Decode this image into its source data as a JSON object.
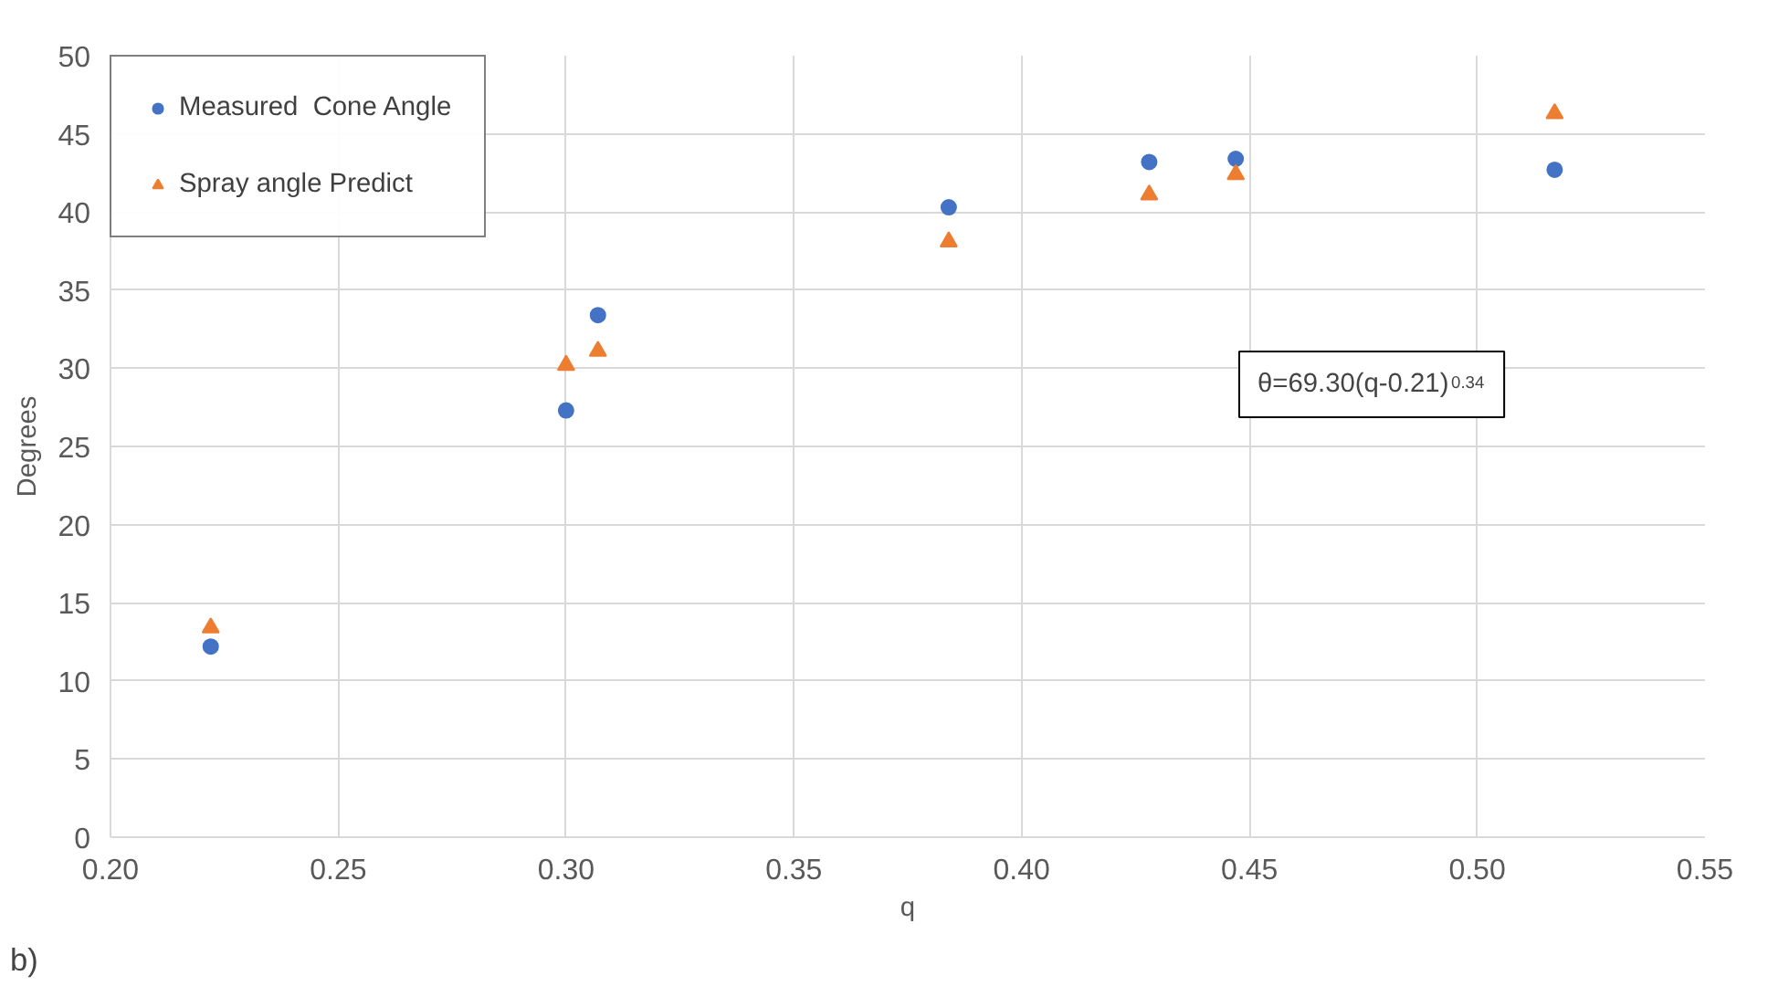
{
  "chart_data": {
    "type": "scatter",
    "xlabel": "q",
    "ylabel": "Degrees",
    "xlim": [
      0.2,
      0.55
    ],
    "xticks": [
      {
        "value": 0.2,
        "label": "0.20"
      },
      {
        "value": 0.25,
        "label": "0.25"
      },
      {
        "value": 0.3,
        "label": "0.30"
      },
      {
        "value": 0.35,
        "label": "0.35"
      },
      {
        "value": 0.4,
        "label": "0.40"
      },
      {
        "value": 0.45,
        "label": "0.45"
      },
      {
        "value": 0.5,
        "label": "0.50"
      },
      {
        "value": 0.55,
        "label": "0.55"
      }
    ],
    "ylim": [
      0,
      50
    ],
    "yticks": [
      0,
      5,
      10,
      15,
      20,
      25,
      30,
      35,
      40,
      45,
      50
    ],
    "x": [
      0.222,
      0.3,
      0.307,
      0.384,
      0.428,
      0.447,
      0.517
    ],
    "series": [
      {
        "name": "Measured  Cone Angle",
        "color": "#4472c4",
        "marker": "circle",
        "values": [
          12.2,
          27.3,
          33.4,
          40.3,
          43.2,
          43.4,
          42.7
        ]
      },
      {
        "name": "Spray angle Predict",
        "color": "#ed7d31",
        "marker": "triangle",
        "values": [
          13.4,
          30.2,
          31.1,
          38.1,
          41.1,
          42.4,
          46.3
        ]
      }
    ],
    "annotations": [
      "θ=69.30(q-0.21)$^{0.34}$",
      "b)"
    ],
    "grid": true,
    "legend": "top left"
  }
}
